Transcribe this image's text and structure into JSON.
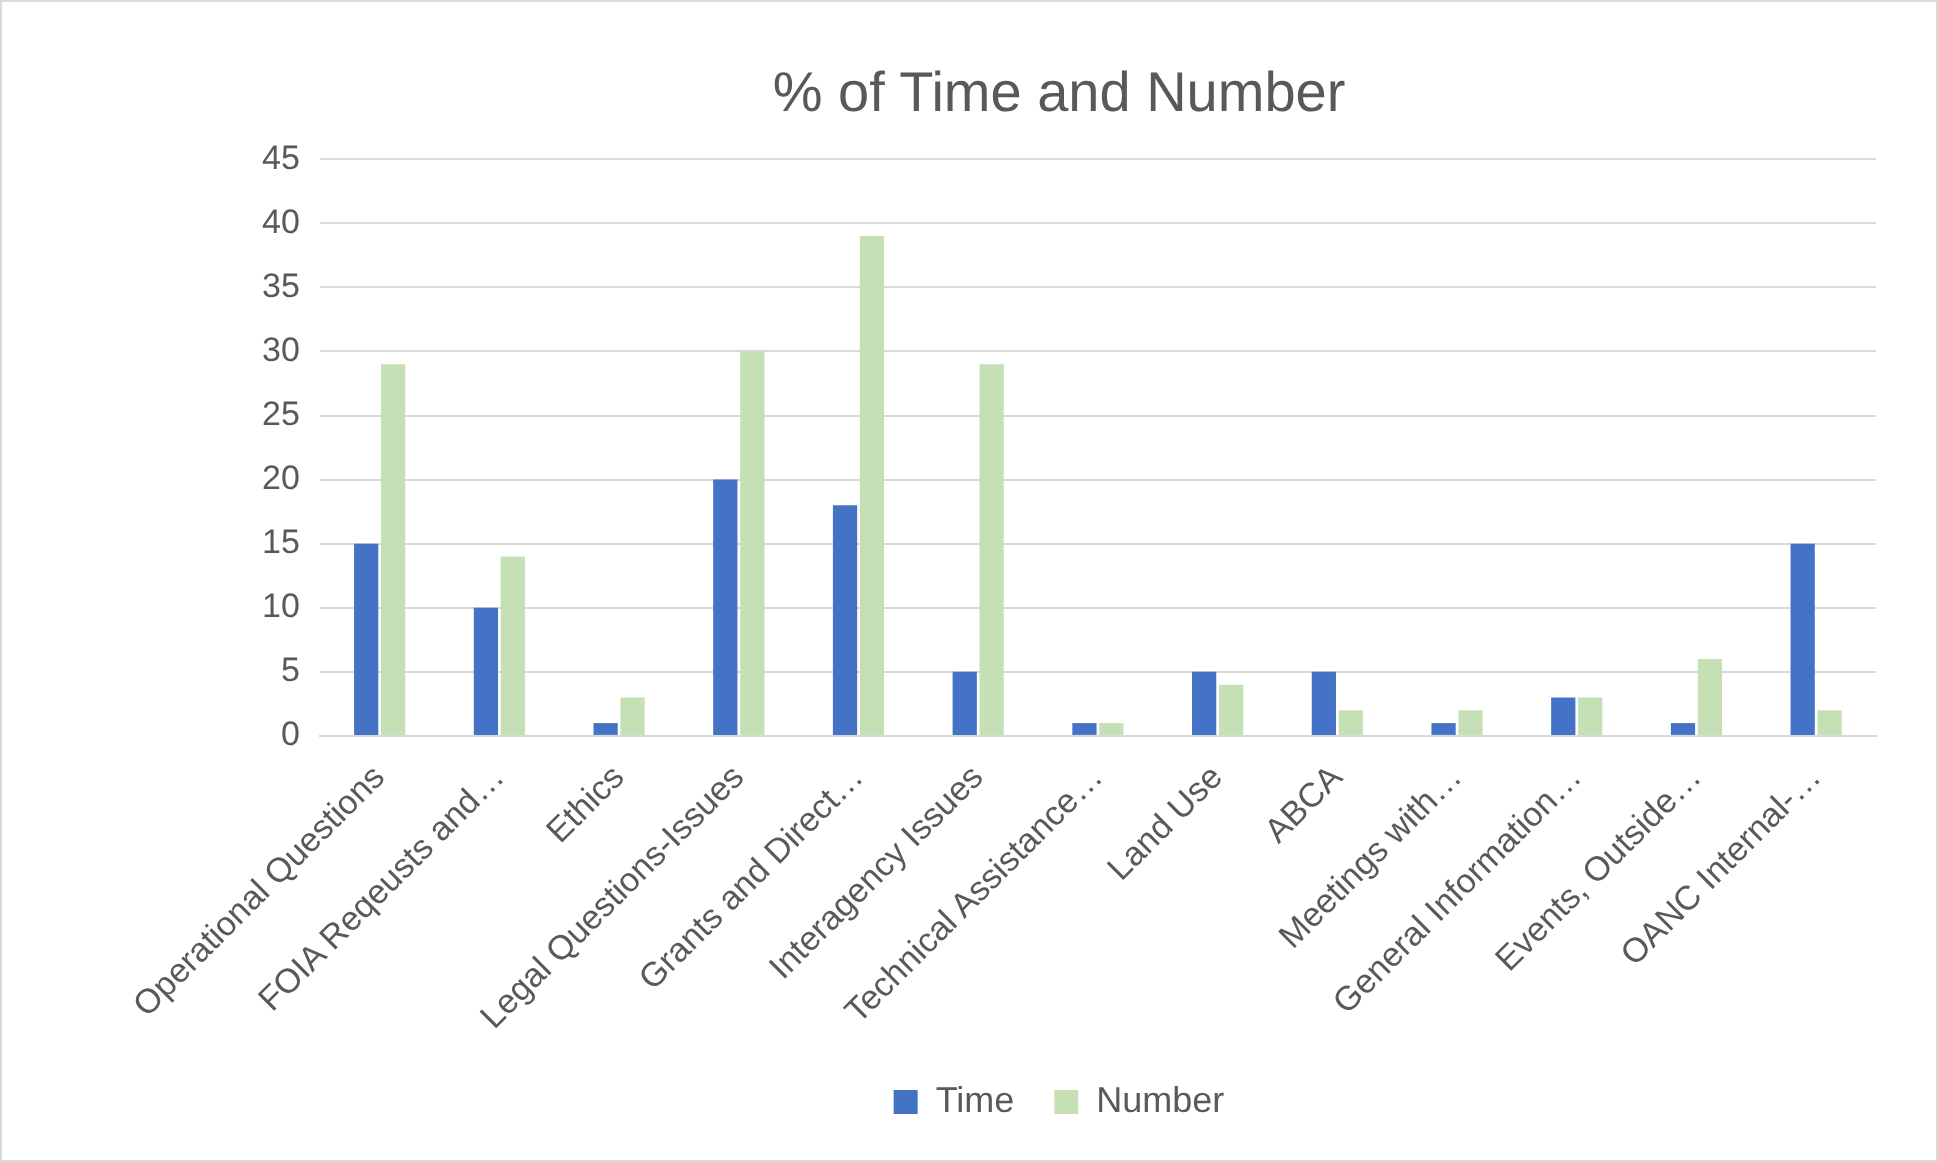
{
  "chart_data": {
    "type": "bar",
    "title": "% of Time and Number",
    "categories": [
      "Operational Questions",
      "FOIA Reqeusts and…",
      "Ethics",
      "Legal Questions-Issues",
      "Grants and Direct…",
      "Interagency Issues",
      "Technical Assistance…",
      "Land Use",
      "ABCA",
      "Meetings with…",
      "General Information…",
      "Events, Outside…",
      "OANC Internal-…"
    ],
    "series": [
      {
        "name": "Time",
        "color": "#4472c4",
        "values": [
          15,
          10,
          1,
          20,
          18,
          5,
          1,
          5,
          5,
          1,
          3,
          1,
          15
        ]
      },
      {
        "name": "Number",
        "color": "#c5e0b4",
        "values": [
          29,
          14,
          3,
          30,
          39,
          29,
          1,
          4,
          2,
          2,
          3,
          6,
          2
        ]
      }
    ],
    "ylim": [
      0,
      45
    ],
    "yticks": [
      0,
      5,
      10,
      15,
      20,
      25,
      30,
      35,
      40,
      45
    ],
    "grid": "y",
    "legend": "bottom"
  }
}
